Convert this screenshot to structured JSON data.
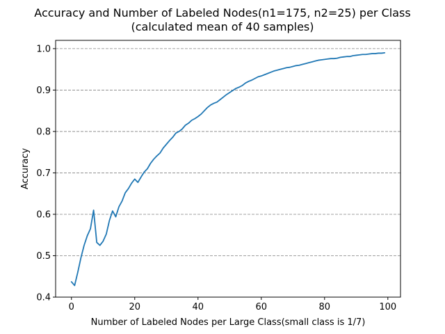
{
  "chart_data": {
    "type": "line",
    "title": "Accuracy and Number of Labeled Nodes(n1=175, n2=25) per Class",
    "subtitle": "(calculated mean of 40 samples)",
    "xlabel": "Number of Labeled Nodes per Large Class(small class is 1/7)",
    "ylabel": "Accuracy",
    "xlim": [
      -5,
      104
    ],
    "ylim": [
      0.4,
      1.02
    ],
    "xticks": [
      0,
      20,
      40,
      60,
      80,
      100
    ],
    "yticks": [
      0.4,
      0.5,
      0.6,
      0.7,
      0.8,
      0.9,
      1.0
    ],
    "xtick_labels": [
      "0",
      "20",
      "40",
      "60",
      "80",
      "100"
    ],
    "ytick_labels": [
      "0.4",
      "0.5",
      "0.6",
      "0.7",
      "0.8",
      "0.9",
      "1.0"
    ],
    "grid": "horizontal-dashed",
    "color": "#1f77b4",
    "series": [
      {
        "x": [
          0,
          1,
          2,
          3,
          4,
          5,
          6,
          7,
          8,
          9,
          10,
          11,
          12,
          13,
          14,
          15,
          16,
          17,
          18,
          19,
          20,
          21,
          22,
          23,
          24,
          25,
          26,
          27,
          28,
          29,
          30,
          31,
          32,
          33,
          34,
          35,
          36,
          37,
          38,
          39,
          40,
          41,
          42,
          43,
          44,
          45,
          46,
          47,
          48,
          49,
          50,
          51,
          52,
          53,
          54,
          55,
          56,
          57,
          58,
          59,
          60,
          61,
          62,
          63,
          64,
          65,
          66,
          67,
          68,
          69,
          70,
          71,
          72,
          73,
          74,
          75,
          76,
          77,
          78,
          79,
          80,
          81,
          82,
          83,
          84,
          85,
          86,
          87,
          88,
          89,
          90,
          91,
          92,
          93,
          94,
          95,
          96,
          97,
          98,
          99
        ],
        "y": [
          0.437,
          0.428,
          0.46,
          0.495,
          0.525,
          0.548,
          0.565,
          0.61,
          0.532,
          0.525,
          0.535,
          0.552,
          0.585,
          0.608,
          0.594,
          0.618,
          0.632,
          0.652,
          0.662,
          0.675,
          0.685,
          0.677,
          0.69,
          0.702,
          0.71,
          0.723,
          0.733,
          0.741,
          0.748,
          0.76,
          0.769,
          0.778,
          0.786,
          0.796,
          0.8,
          0.806,
          0.815,
          0.82,
          0.827,
          0.831,
          0.836,
          0.842,
          0.85,
          0.858,
          0.864,
          0.868,
          0.871,
          0.877,
          0.883,
          0.889,
          0.894,
          0.899,
          0.904,
          0.907,
          0.911,
          0.917,
          0.921,
          0.924,
          0.928,
          0.932,
          0.934,
          0.937,
          0.94,
          0.943,
          0.946,
          0.948,
          0.95,
          0.952,
          0.954,
          0.955,
          0.957,
          0.959,
          0.96,
          0.962,
          0.964,
          0.966,
          0.968,
          0.97,
          0.972,
          0.973,
          0.974,
          0.975,
          0.976,
          0.976,
          0.977,
          0.979,
          0.98,
          0.981,
          0.981,
          0.983,
          0.984,
          0.985,
          0.986,
          0.986,
          0.987,
          0.988,
          0.988,
          0.989,
          0.989,
          0.99
        ]
      }
    ]
  }
}
